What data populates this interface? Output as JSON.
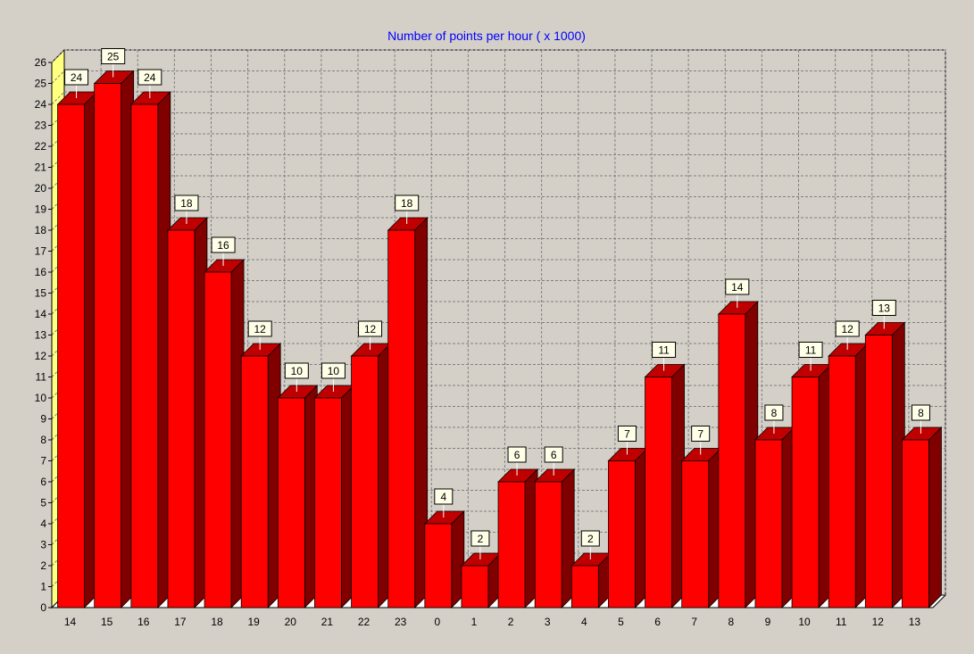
{
  "colors": {
    "background": "#d4d0c8",
    "bar_front": "#ff0000",
    "bar_side": "#800000",
    "bar_top": "#c00000",
    "wall_left": "#ffff80",
    "grid": "#808080",
    "title": "#0000ff",
    "label_box": "#ffffe8"
  },
  "chart_data": {
    "type": "bar",
    "title": "Number of points per hour ( x 1000)",
    "xlabel": "",
    "ylabel": "",
    "categories": [
      "14",
      "15",
      "16",
      "17",
      "18",
      "19",
      "20",
      "21",
      "22",
      "23",
      "0",
      "1",
      "2",
      "3",
      "4",
      "5",
      "6",
      "7",
      "8",
      "9",
      "10",
      "11",
      "12",
      "13"
    ],
    "values": [
      24,
      25,
      24,
      18,
      16,
      12,
      10,
      10,
      12,
      18,
      4,
      2,
      6,
      6,
      2,
      7,
      11,
      7,
      14,
      8,
      11,
      12,
      13,
      8
    ],
    "ylim": [
      0,
      26
    ],
    "yticks": [
      0,
      1,
      2,
      3,
      4,
      5,
      6,
      7,
      8,
      9,
      10,
      11,
      12,
      13,
      14,
      15,
      16,
      17,
      18,
      19,
      20,
      21,
      22,
      23,
      24,
      25,
      26
    ],
    "grid": true,
    "data_labels": true,
    "style": "3d"
  }
}
